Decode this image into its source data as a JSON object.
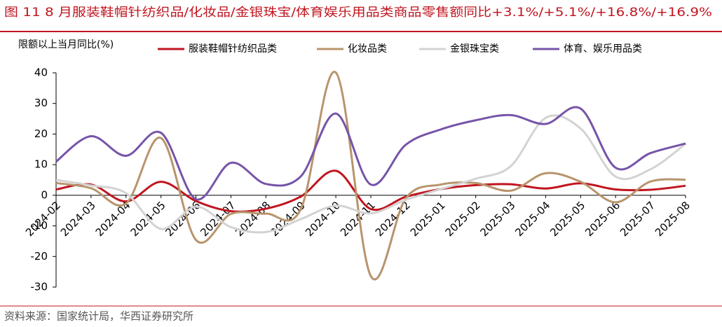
{
  "chart_data": {
    "type": "line",
    "title": "图 11  8 月服装鞋帽针纺织品/化妆品/金银珠宝/体育娱乐用品类商品零售额同比+3.1%/+5.1%/+16.8%/+16.9%",
    "y_label": "限额以上当月同比(%)",
    "source": "资料来源：国家统计局，华西证券研究所",
    "categories": [
      "2024-02",
      "2024-03",
      "2024-04",
      "2024-05",
      "2024-06",
      "2024-07",
      "2024-08",
      "2024-09",
      "2024-10",
      "2024-11",
      "2024-12",
      "2025-01",
      "2025-02",
      "2025-03",
      "2025-04",
      "2025-05",
      "2025-06",
      "2025-07",
      "2025-08"
    ],
    "series": [
      {
        "name": "服装鞋帽针纺织品类",
        "color": "#c0151f",
        "values": [
          1.9,
          3.5,
          -2.0,
          4.4,
          -1.9,
          -5.2,
          -4.4,
          -0.4,
          8.0,
          -4.5,
          -0.5,
          2.0,
          3.3,
          3.6,
          2.2,
          3.9,
          1.9,
          1.8,
          3.1
        ]
      },
      {
        "name": "化妆品类",
        "color": "#b8946c",
        "values": [
          4.0,
          2.3,
          -2.7,
          18.7,
          -14.6,
          -6.1,
          -6.0,
          -4.5,
          40.1,
          -26.4,
          -1.0,
          3.5,
          4.0,
          1.5,
          7.2,
          4.4,
          -2.3,
          4.5,
          5.1
        ]
      },
      {
        "name": "金银珠宝类",
        "color": "#d3d3d3",
        "values": [
          5.0,
          3.2,
          0.7,
          -11.0,
          -3.7,
          -10.4,
          -12.0,
          -7.8,
          -3.4,
          -5.9,
          -1.5,
          2.0,
          5.4,
          9.5,
          25.3,
          21.8,
          6.1,
          8.5,
          16.8
        ]
      },
      {
        "name": "体育、娱乐用品类",
        "color": "#7654a8",
        "values": [
          11.0,
          19.3,
          12.9,
          20.4,
          -1.3,
          10.6,
          3.7,
          6.2,
          26.7,
          3.5,
          16.5,
          21.5,
          24.5,
          26.2,
          23.3,
          28.3,
          9.0,
          13.8,
          16.9
        ]
      }
    ],
    "ylim": [
      -30,
      40
    ],
    "yticks": [
      -30,
      -20,
      -10,
      0,
      10,
      20,
      30,
      40
    ],
    "legend": "top"
  }
}
